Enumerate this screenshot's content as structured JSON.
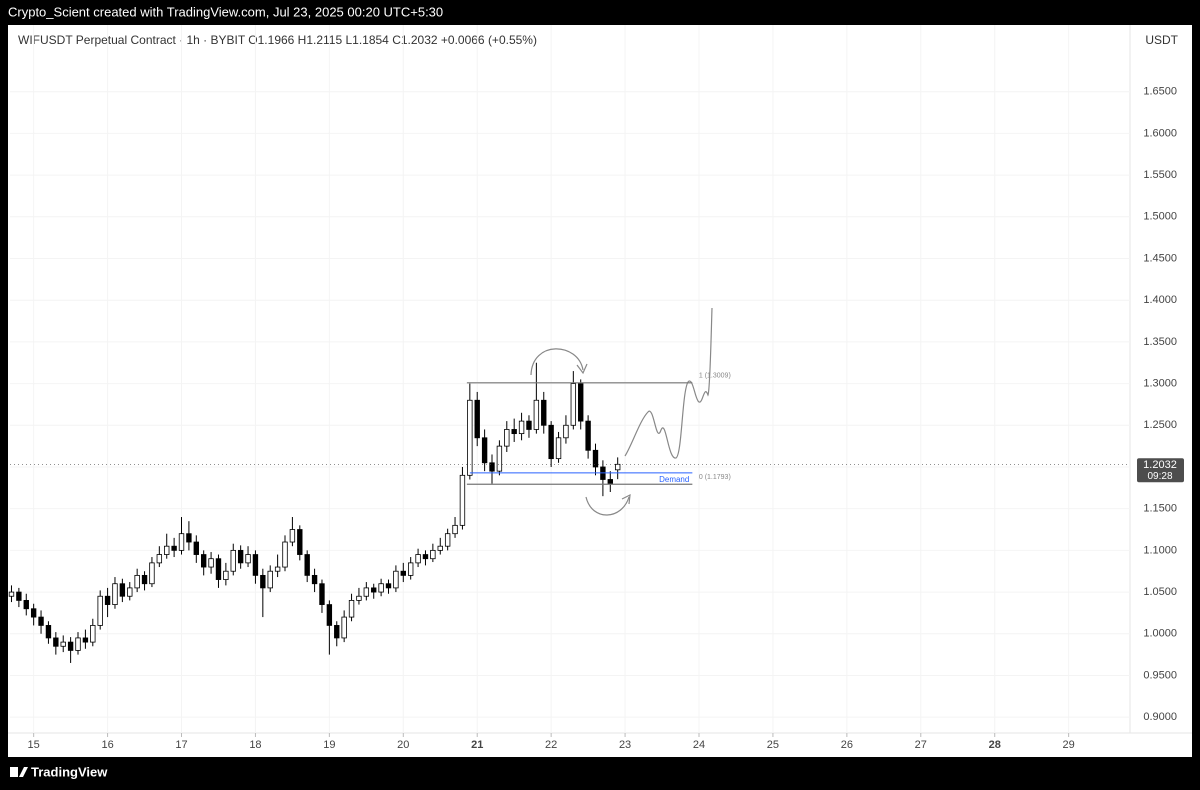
{
  "header": "Crypto_Scient created with TradingView.com, Jul 23, 2025 00:20 UTC+5:30",
  "footer": "TradingView",
  "chart_data": {
    "type": "candlestick",
    "title": "WIFUSDT Perpetual Contract · 1h · BYBIT  O1.1966  H1.2115  L1.1854  C1.2032  +0.0066 (+0.55%)",
    "y_axis_label": "USDT",
    "up_color": "#ffffff",
    "down_color": "#000000",
    "edge_color": "#000000",
    "grid": true,
    "xlim": [
      14.68,
      29.83
    ],
    "xticks": [
      15,
      16,
      17,
      18,
      19,
      20,
      21,
      22,
      23,
      24,
      25,
      26,
      27,
      28,
      29
    ],
    "ylim": [
      0.881,
      1.73
    ],
    "yticks": [
      {
        "value": 0.9,
        "label": "0.9000"
      },
      {
        "value": 0.95,
        "label": "0.9500"
      },
      {
        "value": 1.0,
        "label": "1.0000"
      },
      {
        "value": 1.05,
        "label": "1.0500"
      },
      {
        "value": 1.1,
        "label": "1.1000"
      },
      {
        "value": 1.15,
        "label": "1.1500"
      },
      {
        "value": 1.2,
        "label": "1.2000"
      },
      {
        "value": 1.25,
        "label": "1.2500"
      },
      {
        "value": 1.3,
        "label": "1.3000"
      },
      {
        "value": 1.35,
        "label": "1.3500"
      },
      {
        "value": 1.4,
        "label": "1.4000"
      },
      {
        "value": 1.45,
        "label": "1.4500"
      },
      {
        "value": 1.5,
        "label": "1.5000"
      },
      {
        "value": 1.55,
        "label": "1.5500"
      },
      {
        "value": 1.6,
        "label": "1.6000"
      },
      {
        "value": 1.65,
        "label": "1.6500"
      }
    ],
    "ohlc": {
      "x": [
        14.7,
        14.8,
        14.9,
        15.0,
        15.1,
        15.2,
        15.3,
        15.4,
        15.5,
        15.6,
        15.7,
        15.8,
        15.9,
        16.0,
        16.1,
        16.2,
        16.3,
        16.4,
        16.5,
        16.6,
        16.7,
        16.8,
        16.9,
        17.0,
        17.1,
        17.2,
        17.3,
        17.4,
        17.5,
        17.6,
        17.7,
        17.8,
        17.9,
        18.0,
        18.1,
        18.2,
        18.3,
        18.4,
        18.5,
        18.6,
        18.7,
        18.8,
        18.9,
        19.0,
        19.1,
        19.2,
        19.3,
        19.4,
        19.5,
        19.6,
        19.7,
        19.8,
        19.9,
        20.0,
        20.1,
        20.2,
        20.3,
        20.4,
        20.5,
        20.6,
        20.7,
        20.8,
        20.9,
        21.0,
        21.1,
        21.2,
        21.3,
        21.4,
        21.5,
        21.6,
        21.7,
        21.8,
        21.9,
        22.0,
        22.1,
        22.2,
        22.3,
        22.4,
        22.5,
        22.6,
        22.7,
        22.8,
        22.9
      ],
      "open": [
        1.045,
        1.05,
        1.04,
        1.03,
        1.02,
        1.01,
        0.995,
        0.985,
        0.99,
        0.98,
        0.995,
        0.99,
        1.01,
        1.045,
        1.035,
        1.06,
        1.045,
        1.055,
        1.07,
        1.06,
        1.085,
        1.095,
        1.105,
        1.1,
        1.12,
        1.11,
        1.095,
        1.08,
        1.09,
        1.065,
        1.075,
        1.1,
        1.085,
        1.095,
        1.07,
        1.055,
        1.075,
        1.08,
        1.11,
        1.125,
        1.095,
        1.07,
        1.06,
        1.035,
        1.01,
        0.995,
        1.02,
        1.04,
        1.045,
        1.055,
        1.05,
        1.06,
        1.055,
        1.075,
        1.07,
        1.085,
        1.095,
        1.09,
        1.1,
        1.105,
        1.12,
        1.13,
        1.19,
        1.28,
        1.235,
        1.205,
        1.195,
        1.225,
        1.245,
        1.24,
        1.255,
        1.245,
        1.28,
        1.25,
        1.21,
        1.235,
        1.25,
        1.3,
        1.255,
        1.22,
        1.2,
        1.185,
        1.1966
      ],
      "high": [
        1.058,
        1.055,
        1.048,
        1.036,
        1.028,
        1.015,
        1.002,
        0.998,
        0.996,
        1.002,
        1.005,
        1.018,
        1.052,
        1.055,
        1.068,
        1.066,
        1.062,
        1.078,
        1.075,
        1.092,
        1.105,
        1.12,
        1.115,
        1.14,
        1.135,
        1.118,
        1.1,
        1.098,
        1.095,
        1.085,
        1.108,
        1.106,
        1.105,
        1.1,
        1.078,
        1.082,
        1.095,
        1.118,
        1.14,
        1.13,
        1.1,
        1.078,
        1.065,
        1.04,
        1.015,
        1.028,
        1.048,
        1.055,
        1.062,
        1.06,
        1.066,
        1.065,
        1.082,
        1.085,
        1.092,
        1.102,
        1.1,
        1.108,
        1.115,
        1.126,
        1.14,
        1.2,
        1.3,
        1.29,
        1.245,
        1.215,
        1.232,
        1.255,
        1.258,
        1.265,
        1.262,
        1.325,
        1.29,
        1.255,
        1.242,
        1.262,
        1.315,
        1.305,
        1.262,
        1.228,
        1.208,
        1.195,
        1.2115
      ],
      "low": [
        1.038,
        1.032,
        1.022,
        1.01,
        1.0,
        0.988,
        0.975,
        0.978,
        0.965,
        0.975,
        0.982,
        0.985,
        1.005,
        1.02,
        1.03,
        1.038,
        1.04,
        1.05,
        1.052,
        1.056,
        1.08,
        1.09,
        1.092,
        1.095,
        1.1,
        1.085,
        1.07,
        1.072,
        1.055,
        1.058,
        1.07,
        1.078,
        1.08,
        1.06,
        1.02,
        1.05,
        1.068,
        1.075,
        1.105,
        1.088,
        1.062,
        1.05,
        1.025,
        0.975,
        0.985,
        0.99,
        1.015,
        1.035,
        1.04,
        1.042,
        1.045,
        1.048,
        1.05,
        1.062,
        1.065,
        1.08,
        1.082,
        1.086,
        1.095,
        1.1,
        1.115,
        1.125,
        1.185,
        1.225,
        1.195,
        1.18,
        1.19,
        1.218,
        1.23,
        1.232,
        1.235,
        1.24,
        1.24,
        1.2,
        1.205,
        1.228,
        1.245,
        1.245,
        1.21,
        1.19,
        1.165,
        1.17,
        1.1854
      ],
      "close": [
        1.05,
        1.04,
        1.03,
        1.02,
        1.01,
        0.995,
        0.985,
        0.99,
        0.98,
        0.995,
        0.99,
        1.01,
        1.045,
        1.035,
        1.06,
        1.045,
        1.055,
        1.07,
        1.06,
        1.085,
        1.095,
        1.105,
        1.1,
        1.12,
        1.11,
        1.095,
        1.08,
        1.09,
        1.065,
        1.075,
        1.1,
        1.085,
        1.095,
        1.07,
        1.055,
        1.075,
        1.08,
        1.11,
        1.125,
        1.095,
        1.07,
        1.06,
        1.035,
        1.01,
        0.995,
        1.02,
        1.04,
        1.045,
        1.055,
        1.05,
        1.06,
        1.055,
        1.075,
        1.07,
        1.085,
        1.095,
        1.09,
        1.1,
        1.105,
        1.12,
        1.13,
        1.19,
        1.28,
        1.235,
        1.205,
        1.195,
        1.225,
        1.245,
        1.24,
        1.255,
        1.245,
        1.28,
        1.25,
        1.21,
        1.235,
        1.25,
        1.3,
        1.255,
        1.22,
        1.2,
        1.185,
        1.18,
        1.2032
      ]
    },
    "fib_levels": [
      {
        "value": 1.3009,
        "label": "1 (1.3009)"
      },
      {
        "value": 1.1793,
        "label": "0 (1.1793)"
      }
    ],
    "fib_x_range": [
      20.86,
      23.91
    ],
    "zone": {
      "label": "Demand",
      "value": 1.193,
      "color": "#2962ff"
    },
    "last_price": {
      "value": 1.2032,
      "label": 1.2032,
      "countdown": "09:28",
      "color": "#4d4d4d"
    }
  }
}
